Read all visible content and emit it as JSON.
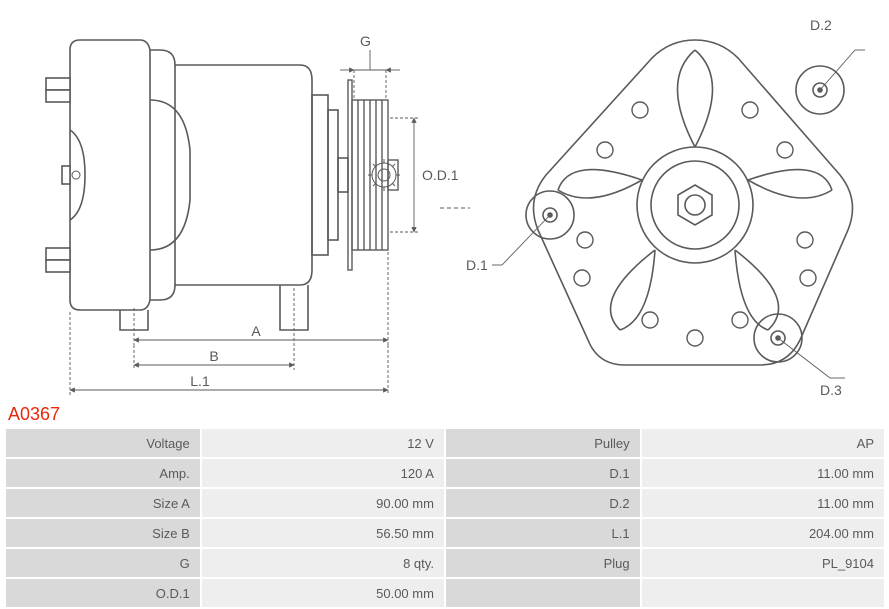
{
  "part_number": "A0367",
  "diagram": {
    "stroke_color": "#5a5a5a",
    "stroke_width": 1.6,
    "thin_stroke": 0.9,
    "arrow_stroke": 1,
    "background": "#ffffff",
    "side_view": {
      "labels": {
        "A": "A",
        "B": "B",
        "L1": "L.1",
        "G": "G",
        "OD1": "O.D.1"
      }
    },
    "front_view": {
      "labels": {
        "D1": "D.1",
        "D2": "D.2",
        "D3": "D.3"
      }
    }
  },
  "specs": {
    "rows_left": [
      {
        "label": "Voltage",
        "value": "12 V"
      },
      {
        "label": "Amp.",
        "value": "120 A"
      },
      {
        "label": "Size A",
        "value": "90.00 mm"
      },
      {
        "label": "Size B",
        "value": "56.50 mm"
      },
      {
        "label": "G",
        "value": "8 qty."
      },
      {
        "label": "O.D.1",
        "value": "50.00 mm"
      }
    ],
    "rows_right": [
      {
        "label": "Pulley",
        "value": "AP"
      },
      {
        "label": "D.1",
        "value": "11.00 mm"
      },
      {
        "label": "D.2",
        "value": "11.00 mm"
      },
      {
        "label": "L.1",
        "value": "204.00 mm"
      },
      {
        "label": "Plug",
        "value": "PL_9104"
      },
      {
        "label": "",
        "value": ""
      }
    ]
  }
}
